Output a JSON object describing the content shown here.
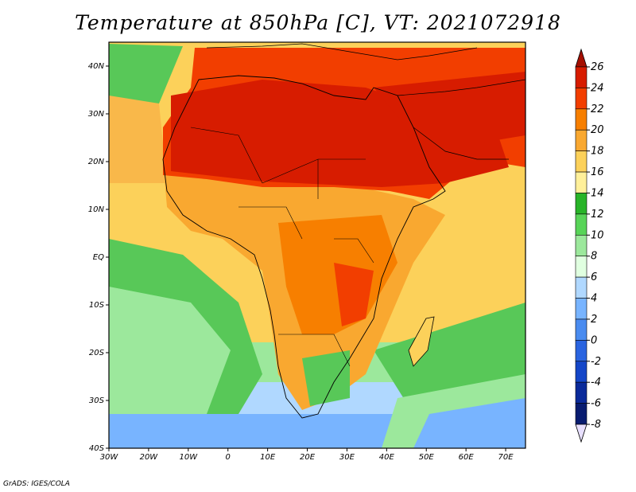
{
  "title": "Temperature at 850hPa [C], VT: 2021072918",
  "credit": "GrADS: IGES/COLA",
  "map": {
    "lon_range": [
      -30,
      75
    ],
    "lat_range": [
      -40,
      45
    ],
    "x_ticks": [
      "30W",
      "20W",
      "10W",
      "0",
      "10E",
      "20E",
      "30E",
      "40E",
      "50E",
      "60E",
      "70E"
    ],
    "y_ticks": [
      "40N",
      "30N",
      "20N",
      "10N",
      "EQ",
      "10S",
      "20S",
      "30S",
      "40S"
    ]
  },
  "colorbar": {
    "labels": [
      "26",
      "24",
      "22",
      "20",
      "18",
      "16",
      "14",
      "12",
      "10",
      "8",
      "6",
      "4",
      "2",
      "0",
      "-2",
      "-4",
      "-6",
      "-8"
    ],
    "colors": [
      "#a50f00",
      "#d71c00",
      "#f23e00",
      "#f77f00",
      "#f9a830",
      "#fcd15a",
      "#fff09a",
      "#28b428",
      "#58d458",
      "#9ce89c",
      "#e0ffe0",
      "#b0d8ff",
      "#78b4ff",
      "#4a8cf0",
      "#2a64e0",
      "#1446c8",
      "#0a2a9a",
      "#081c70"
    ]
  },
  "regions": [
    {
      "name": "land-hot-north-africa",
      "color": "#d81e00"
    },
    {
      "name": "ocean-mid",
      "color": "#f9b84a"
    },
    {
      "name": "ocean-south-cool",
      "color": "#58c858"
    }
  ]
}
